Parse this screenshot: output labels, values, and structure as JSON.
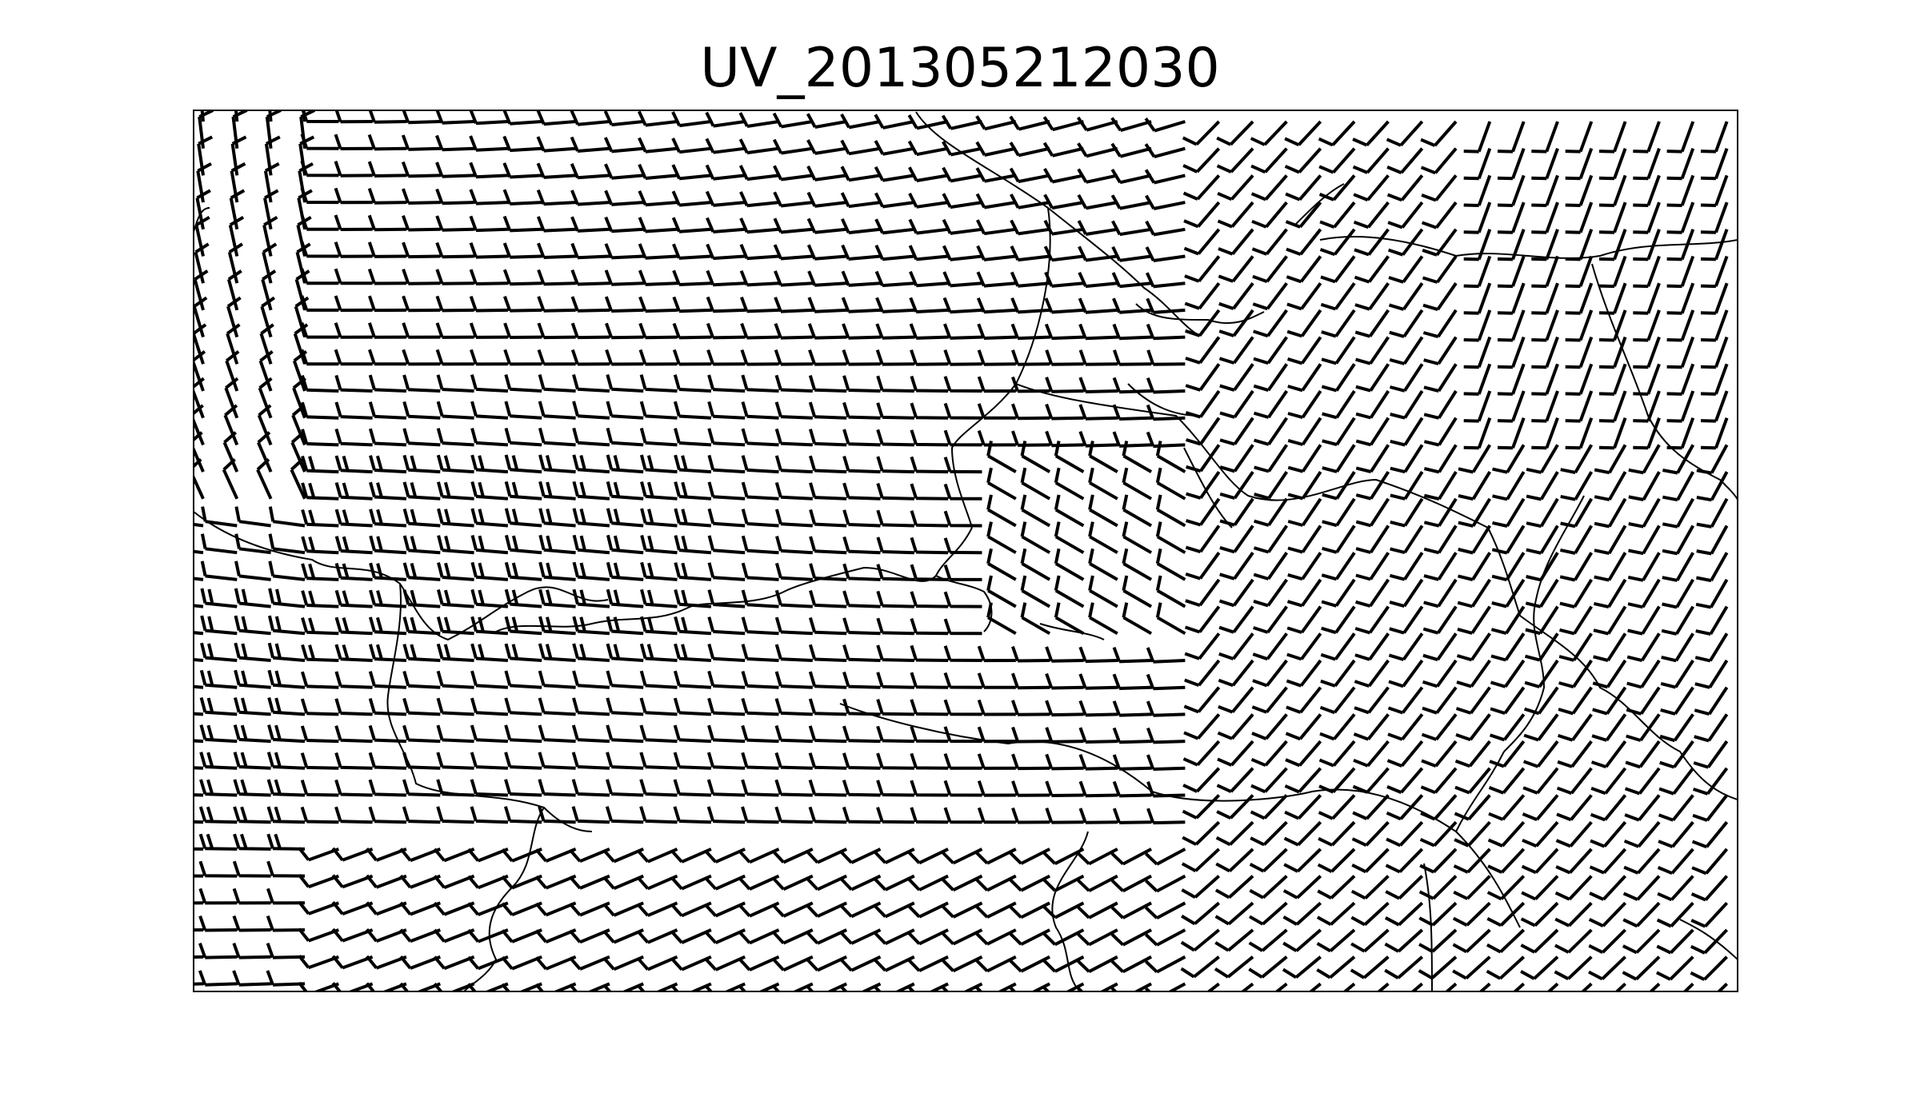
{
  "title": "UV_201305212030",
  "map": {
    "frame_color": "#000000",
    "barb_color": "#000000",
    "border_color": "#000000",
    "grid_columns": 46,
    "grid_rows": 33
  }
}
